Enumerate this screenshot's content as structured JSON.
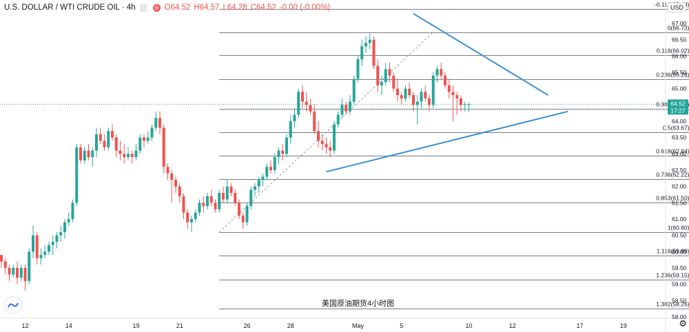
{
  "header": {
    "symbol_title": "U.S. DOLLAR / WTI CRUDE OIL · 4h",
    "open": "O64.52",
    "high": "H64.57",
    "low": "L64.28",
    "close": "C64.52",
    "change": "-0.00 (-0.00%)"
  },
  "currency_label": "USD",
  "watermark": "美国原油期货4小时图",
  "last_price": {
    "value": "64.52",
    "countdown": "17:27",
    "price": 64.52
  },
  "colors": {
    "up": "#26a69a",
    "down": "#ef5350",
    "trendline": "#3b8fd0",
    "fib": "#787b86",
    "axis_text": "#131722"
  },
  "chart_data": {
    "type": "candlestick",
    "title": "",
    "ylim": [
      57.8,
      67.6
    ],
    "y_ticks": [
      58.0,
      58.5,
      59.0,
      59.5,
      60.0,
      60.5,
      61.0,
      61.5,
      62.0,
      62.5,
      63.0,
      63.5,
      64.0,
      64.5,
      65.0,
      65.5,
      66.0,
      66.5,
      67.0
    ],
    "x_ticks": [
      {
        "label": "12",
        "bar": 6
      },
      {
        "label": "14",
        "bar": 17
      },
      {
        "label": "19",
        "bar": 34
      },
      {
        "label": "21",
        "bar": 45
      },
      {
        "label": "26",
        "bar": 62
      },
      {
        "label": "28",
        "bar": 73
      },
      {
        "label": "May",
        "bar": 90
      },
      {
        "label": "5",
        "bar": 101
      },
      {
        "label": "10",
        "bar": 118
      },
      {
        "label": "12",
        "bar": 129
      },
      {
        "label": "17",
        "bar": 146
      },
      {
        "label": "19",
        "bar": 157
      }
    ],
    "candles": [
      [
        59.9,
        59.9,
        59.5,
        59.7
      ],
      [
        59.7,
        59.8,
        59.3,
        59.5
      ],
      [
        59.5,
        59.6,
        59.1,
        59.3
      ],
      [
        59.3,
        59.6,
        59.2,
        59.5
      ],
      [
        59.5,
        59.7,
        59.0,
        59.2
      ],
      [
        59.2,
        59.6,
        59.1,
        59.5
      ],
      [
        59.5,
        59.6,
        58.8,
        59.1
      ],
      [
        59.1,
        60.1,
        59.0,
        60.0
      ],
      [
        60.0,
        60.8,
        59.8,
        60.5
      ],
      [
        60.5,
        60.6,
        59.6,
        59.8
      ],
      [
        59.8,
        60.1,
        59.6,
        59.9
      ],
      [
        59.9,
        60.2,
        59.8,
        60.0
      ],
      [
        60.0,
        60.3,
        59.9,
        60.2
      ],
      [
        60.2,
        60.5,
        59.9,
        60.3
      ],
      [
        60.3,
        60.6,
        60.1,
        60.5
      ],
      [
        60.5,
        60.8,
        60.3,
        60.6
      ],
      [
        60.6,
        61.0,
        60.4,
        60.9
      ],
      [
        60.9,
        61.2,
        60.8,
        61.0
      ],
      [
        61.0,
        61.6,
        60.9,
        61.5
      ],
      [
        61.5,
        63.3,
        61.4,
        63.2
      ],
      [
        63.2,
        63.3,
        62.7,
        62.8
      ],
      [
        62.8,
        63.2,
        62.7,
        63.1
      ],
      [
        63.1,
        63.3,
        62.8,
        62.9
      ],
      [
        62.9,
        63.2,
        62.6,
        63.1
      ],
      [
        63.1,
        63.8,
        62.9,
        63.6
      ],
      [
        63.6,
        63.8,
        63.3,
        63.4
      ],
      [
        63.4,
        63.6,
        63.1,
        63.2
      ],
      [
        63.2,
        63.8,
        63.1,
        63.7
      ],
      [
        63.7,
        63.9,
        63.4,
        63.5
      ],
      [
        63.5,
        63.6,
        62.9,
        63.1
      ],
      [
        63.1,
        63.4,
        62.8,
        63.0
      ],
      [
        63.0,
        63.3,
        62.7,
        62.9
      ],
      [
        62.9,
        63.2,
        62.8,
        63.0
      ],
      [
        63.0,
        63.1,
        62.7,
        62.9
      ],
      [
        62.9,
        63.3,
        62.8,
        63.1
      ],
      [
        63.1,
        63.6,
        63.0,
        63.5
      ],
      [
        63.5,
        63.6,
        63.2,
        63.4
      ],
      [
        63.4,
        63.7,
        63.3,
        63.5
      ],
      [
        63.5,
        63.9,
        63.4,
        63.8
      ],
      [
        63.8,
        64.3,
        63.7,
        64.1
      ],
      [
        64.1,
        64.3,
        63.6,
        63.8
      ],
      [
        63.8,
        63.9,
        62.4,
        62.6
      ],
      [
        62.6,
        62.7,
        62.2,
        62.4
      ],
      [
        62.4,
        62.5,
        61.5,
        62.2
      ],
      [
        62.2,
        62.3,
        61.8,
        62.0
      ],
      [
        62.0,
        62.1,
        61.5,
        61.7
      ],
      [
        61.7,
        61.8,
        61.0,
        61.2
      ],
      [
        61.2,
        61.3,
        60.7,
        60.9
      ],
      [
        60.9,
        61.1,
        60.6,
        61.0
      ],
      [
        61.0,
        61.3,
        60.9,
        61.2
      ],
      [
        61.2,
        61.6,
        61.1,
        61.5
      ],
      [
        61.5,
        61.7,
        61.2,
        61.4
      ],
      [
        61.4,
        61.8,
        61.3,
        61.7
      ],
      [
        61.7,
        61.9,
        61.4,
        61.5
      ],
      [
        61.5,
        61.6,
        61.2,
        61.3
      ],
      [
        61.3,
        61.9,
        61.2,
        61.8
      ],
      [
        61.8,
        62.0,
        61.5,
        61.6
      ],
      [
        61.6,
        62.2,
        61.5,
        62.0
      ],
      [
        62.0,
        62.1,
        61.7,
        61.8
      ],
      [
        61.8,
        61.9,
        61.4,
        61.5
      ],
      [
        61.5,
        61.6,
        61.0,
        61.1
      ],
      [
        61.1,
        61.2,
        60.7,
        60.9
      ],
      [
        60.9,
        61.5,
        60.8,
        61.4
      ],
      [
        61.4,
        62.0,
        61.3,
        61.9
      ],
      [
        61.9,
        62.1,
        61.7,
        62.0
      ],
      [
        62.0,
        62.3,
        61.8,
        62.2
      ],
      [
        62.2,
        62.4,
        62.0,
        62.3
      ],
      [
        62.3,
        62.7,
        62.2,
        62.6
      ],
      [
        62.6,
        62.8,
        62.4,
        62.5
      ],
      [
        62.5,
        63.0,
        62.4,
        62.9
      ],
      [
        62.9,
        63.2,
        62.7,
        63.1
      ],
      [
        63.1,
        63.3,
        62.8,
        63.0
      ],
      [
        63.0,
        63.6,
        62.9,
        63.5
      ],
      [
        63.5,
        64.2,
        63.3,
        64.0
      ],
      [
        64.0,
        64.4,
        63.8,
        64.2
      ],
      [
        64.2,
        65.0,
        64.1,
        64.9
      ],
      [
        64.9,
        65.1,
        64.4,
        64.6
      ],
      [
        64.6,
        64.9,
        64.3,
        64.5
      ],
      [
        64.5,
        64.7,
        64.2,
        64.3
      ],
      [
        64.3,
        64.5,
        63.6,
        63.7
      ],
      [
        63.7,
        64.0,
        63.2,
        63.4
      ],
      [
        63.4,
        63.6,
        63.1,
        63.3
      ],
      [
        63.3,
        63.5,
        63.0,
        63.2
      ],
      [
        63.2,
        63.4,
        62.9,
        63.1
      ],
      [
        63.1,
        64.0,
        63.0,
        63.9
      ],
      [
        63.9,
        64.3,
        63.8,
        64.2
      ],
      [
        64.2,
        64.7,
        64.1,
        64.5
      ],
      [
        64.5,
        64.6,
        64.2,
        64.3
      ],
      [
        64.3,
        64.8,
        64.2,
        64.6
      ],
      [
        64.6,
        65.4,
        64.5,
        65.3
      ],
      [
        65.3,
        66.0,
        65.2,
        65.9
      ],
      [
        65.9,
        66.5,
        65.7,
        66.3
      ],
      [
        66.3,
        66.6,
        66.1,
        66.4
      ],
      [
        66.4,
        66.7,
        66.2,
        66.5
      ],
      [
        66.5,
        66.6,
        65.6,
        65.7
      ],
      [
        65.7,
        65.9,
        64.9,
        65.1
      ],
      [
        65.1,
        65.4,
        64.8,
        65.2
      ],
      [
        65.2,
        65.8,
        65.1,
        65.6
      ],
      [
        65.6,
        65.8,
        65.2,
        65.4
      ],
      [
        65.4,
        65.5,
        64.9,
        65.0
      ],
      [
        65.0,
        65.3,
        64.6,
        64.8
      ],
      [
        64.8,
        64.9,
        64.5,
        64.7
      ],
      [
        64.7,
        65.1,
        64.6,
        65.0
      ],
      [
        65.0,
        65.2,
        64.7,
        64.8
      ],
      [
        64.8,
        64.9,
        64.3,
        64.5
      ],
      [
        64.5,
        64.8,
        63.9,
        64.6
      ],
      [
        64.6,
        65.0,
        64.4,
        64.9
      ],
      [
        64.9,
        65.1,
        64.6,
        64.7
      ],
      [
        64.7,
        64.8,
        64.3,
        64.5
      ],
      [
        64.5,
        65.5,
        64.4,
        65.4
      ],
      [
        65.4,
        65.7,
        65.2,
        65.6
      ],
      [
        65.6,
        65.8,
        65.3,
        65.4
      ],
      [
        65.4,
        65.5,
        65.0,
        65.1
      ],
      [
        65.1,
        65.3,
        64.7,
        64.9
      ],
      [
        64.9,
        65.1,
        64.0,
        64.8
      ],
      [
        64.8,
        64.9,
        64.2,
        64.7
      ],
      [
        64.7,
        64.8,
        64.3,
        64.5
      ],
      [
        64.5,
        64.6,
        64.3,
        64.52
      ],
      [
        64.52,
        64.57,
        64.28,
        64.52
      ]
    ],
    "fib_levels": [
      {
        "ratio": "0",
        "price": 66.73,
        "label": "0(66.73)"
      },
      {
        "ratio": "0.116",
        "price": 66.02,
        "label": "0.116(66.02)"
      },
      {
        "ratio": "0.236",
        "price": 65.28,
        "label": "0.236(65.28)"
      },
      {
        "ratio": "0.382",
        "price": 64.39,
        "label": "0.382(64.39)"
      },
      {
        "ratio": "0.5",
        "price": 63.67,
        "label": "0.5(63.67)"
      },
      {
        "ratio": "0.618",
        "price": 62.94,
        "label": "0.618(62.94)"
      },
      {
        "ratio": "0.736",
        "price": 62.22,
        "label": "0.736(62.22)"
      },
      {
        "ratio": "0.853",
        "price": 61.5,
        "label": "0.853(61.50)"
      },
      {
        "ratio": "1",
        "price": 60.6,
        "label": "1(60.60)"
      },
      {
        "ratio": "1.116",
        "price": 59.89,
        "label": "1.116(59.89)"
      },
      {
        "ratio": "1.236",
        "price": 59.15,
        "label": "1.236(59.15)"
      },
      {
        "ratio": "1.382",
        "price": 58.26,
        "label": "1.382(58.26)"
      },
      {
        "ratio": "-0.116",
        "price": 67.44,
        "label": "-0.116(67.44)"
      }
    ],
    "fib_range_bars": [
      55,
      174
    ],
    "fib_anchor": {
      "from_bar": 55,
      "from_price": 60.6,
      "to_bar": 109,
      "to_price": 66.73
    },
    "trendlines": [
      {
        "name": "upper",
        "from_bar": 104,
        "from_price": 67.3,
        "to_bar": 138,
        "to_price": 64.8
      },
      {
        "name": "lower",
        "from_bar": 82,
        "from_price": 62.45,
        "to_bar": 143,
        "to_price": 64.3
      }
    ]
  }
}
